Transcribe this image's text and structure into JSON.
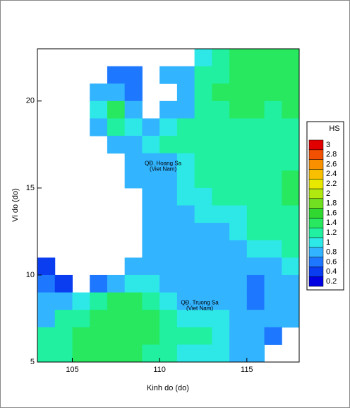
{
  "chart_data": {
    "type": "heatmap",
    "xlabel": "Kinh do (do)",
    "ylabel": "Vi do (do)",
    "xlim": [
      103,
      118
    ],
    "ylim": [
      5,
      23
    ],
    "xticks": [
      105,
      110,
      115
    ],
    "yticks": [
      5,
      10,
      15,
      20
    ],
    "x": [
      103.5,
      104.5,
      105.5,
      106.5,
      107.5,
      108.5,
      109.5,
      110.5,
      111.5,
      112.5,
      113.5,
      114.5,
      115.5,
      116.5,
      117.5
    ],
    "y": [
      22.5,
      21.5,
      20.5,
      19.5,
      18.5,
      17.5,
      16.5,
      15.5,
      14.5,
      13.5,
      12.5,
      11.5,
      10.5,
      9.5,
      8.5,
      7.5,
      6.5,
      5.5
    ],
    "grid": [
      [
        null,
        null,
        null,
        null,
        null,
        null,
        null,
        null,
        null,
        1.0,
        1.1,
        1.3,
        1.3,
        1.4,
        1.5
      ],
      [
        null,
        null,
        null,
        null,
        0.6,
        0.7,
        null,
        0.8,
        0.9,
        1.1,
        1.2,
        1.3,
        1.3,
        1.4,
        1.5
      ],
      [
        null,
        null,
        null,
        0.8,
        0.9,
        0.7,
        null,
        null,
        0.9,
        1.1,
        1.3,
        1.3,
        1.3,
        1.3,
        1.4
      ],
      [
        null,
        null,
        null,
        1.0,
        1.3,
        0.9,
        null,
        0.8,
        0.9,
        1.1,
        1.2,
        1.3,
        1.3,
        1.2,
        1.3
      ],
      [
        null,
        null,
        null,
        0.9,
        1.2,
        1.0,
        0.9,
        1.0,
        1.1,
        1.2,
        1.2,
        1.2,
        1.2,
        1.2,
        1.2
      ],
      [
        null,
        null,
        null,
        null,
        0.9,
        0.9,
        1.0,
        1.1,
        1.1,
        1.2,
        1.2,
        1.2,
        1.2,
        1.1,
        1.2
      ],
      [
        null,
        null,
        null,
        null,
        null,
        0.8,
        0.9,
        0.9,
        1.0,
        1.1,
        1.2,
        1.2,
        1.2,
        1.1,
        1.2
      ],
      [
        null,
        null,
        null,
        null,
        null,
        0.8,
        0.9,
        0.9,
        1.0,
        1.1,
        1.1,
        1.2,
        1.2,
        1.2,
        1.3
      ],
      [
        null,
        null,
        null,
        null,
        null,
        null,
        0.9,
        0.9,
        1.0,
        1.0,
        1.1,
        1.1,
        1.2,
        1.2,
        1.3
      ],
      [
        null,
        null,
        null,
        null,
        null,
        null,
        0.9,
        0.9,
        0.9,
        1.0,
        1.0,
        1.0,
        1.1,
        1.2,
        1.2
      ],
      [
        null,
        null,
        null,
        null,
        null,
        null,
        0.9,
        0.9,
        0.9,
        0.9,
        0.9,
        1.0,
        1.1,
        1.1,
        1.2
      ],
      [
        null,
        null,
        null,
        null,
        null,
        null,
        0.8,
        0.9,
        0.9,
        0.9,
        0.9,
        0.9,
        1.0,
        1.0,
        1.1
      ],
      [
        0.5,
        null,
        null,
        null,
        null,
        0.8,
        0.9,
        0.9,
        0.9,
        0.9,
        0.9,
        0.9,
        0.8,
        0.9,
        1.0
      ],
      [
        0.7,
        0.5,
        null,
        0.6,
        0.9,
        1.0,
        1.0,
        0.9,
        0.9,
        0.9,
        0.8,
        0.8,
        0.7,
        0.8,
        0.9
      ],
      [
        0.8,
        0.9,
        1.0,
        1.1,
        1.3,
        1.3,
        1.2,
        1.0,
        0.9,
        0.9,
        0.9,
        0.8,
        0.7,
        0.8,
        0.9
      ],
      [
        0.9,
        1.1,
        1.2,
        1.3,
        1.4,
        1.4,
        1.3,
        1.1,
        1.0,
        1.0,
        1.0,
        0.9,
        0.8,
        0.8,
        0.8
      ],
      [
        1.1,
        1.2,
        1.3,
        1.4,
        1.4,
        1.4,
        1.3,
        1.2,
        1.1,
        1.1,
        1.0,
        0.9,
        0.8,
        0.7,
        null
      ],
      [
        1.1,
        1.2,
        1.3,
        1.3,
        1.3,
        1.3,
        1.2,
        1.1,
        1.0,
        1.0,
        1.0,
        0.9,
        0.8,
        null,
        null
      ]
    ],
    "colorbar": {
      "title": "HS",
      "levels": [
        0.2,
        0.4,
        0.6,
        0.8,
        1,
        1.2,
        1.4,
        1.6,
        1.8,
        2,
        2.2,
        2.4,
        2.6,
        2.8,
        3
      ],
      "colors": [
        "#0000e0",
        "#0a3cf0",
        "#1e78ff",
        "#32b4ff",
        "#2ee8e8",
        "#20f0a0",
        "#28e860",
        "#30d830",
        "#70e020",
        "#b0e810",
        "#e8e800",
        "#f8c000",
        "#f89000",
        "#f05000",
        "#e00000"
      ]
    },
    "annotations": [
      {
        "text": "QĐ. Hoang Sa",
        "sub": "(Viet Nam)",
        "x": 110.2,
        "y": 16.4
      },
      {
        "text": "QĐ. Truong Sa",
        "sub": "(Viet Nam)",
        "x": 112.3,
        "y": 8.4
      }
    ]
  }
}
